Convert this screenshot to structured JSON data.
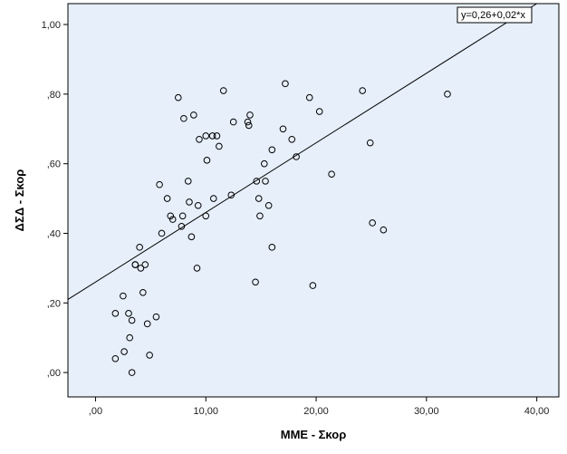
{
  "colors": {
    "plot_background": "#e6effa",
    "frame": "#000000",
    "marker_stroke": "#000000",
    "fit_line": "#000000"
  },
  "chart_data": {
    "type": "scatter",
    "xlabel": "MME - Σκορ",
    "ylabel": "ΔΣΔ - Σκορ",
    "xlim": [
      -2.5,
      42
    ],
    "ylim": [
      -0.07,
      1.06
    ],
    "x_ticks": [
      0,
      10,
      20,
      30,
      40
    ],
    "x_tick_labels": [
      ",00",
      "10,00",
      "20,00",
      "30,00",
      "40,00"
    ],
    "y_ticks": [
      0,
      0.2,
      0.4,
      0.6,
      0.8,
      1.0
    ],
    "y_tick_labels": [
      ",00",
      ",20",
      ",40",
      ",60",
      ",80",
      "1,00"
    ],
    "grid": false,
    "fit_line": {
      "intercept": 0.26,
      "slope": 0.02,
      "label": "y=0,26+0,02*x"
    },
    "points": [
      [
        1.8,
        0.04
      ],
      [
        1.8,
        0.17
      ],
      [
        2.5,
        0.22
      ],
      [
        2.6,
        0.06
      ],
      [
        3.0,
        0.17
      ],
      [
        3.1,
        0.1
      ],
      [
        3.3,
        0.15
      ],
      [
        3.3,
        0.0
      ],
      [
        3.6,
        0.31
      ],
      [
        3.6,
        0.31
      ],
      [
        4.0,
        0.36
      ],
      [
        4.1,
        0.3
      ],
      [
        4.3,
        0.23
      ],
      [
        4.5,
        0.31
      ],
      [
        4.7,
        0.14
      ],
      [
        4.9,
        0.05
      ],
      [
        5.5,
        0.16
      ],
      [
        5.8,
        0.54
      ],
      [
        6.0,
        0.4
      ],
      [
        6.5,
        0.5
      ],
      [
        6.8,
        0.45
      ],
      [
        7.0,
        0.44
      ],
      [
        7.5,
        0.79
      ],
      [
        7.8,
        0.42
      ],
      [
        7.9,
        0.45
      ],
      [
        8.0,
        0.73
      ],
      [
        8.4,
        0.55
      ],
      [
        8.5,
        0.49
      ],
      [
        8.7,
        0.39
      ],
      [
        8.9,
        0.74
      ],
      [
        9.2,
        0.3
      ],
      [
        9.3,
        0.48
      ],
      [
        9.4,
        0.67
      ],
      [
        10.0,
        0.68
      ],
      [
        10.0,
        0.45
      ],
      [
        10.1,
        0.61
      ],
      [
        10.6,
        0.68
      ],
      [
        10.7,
        0.5
      ],
      [
        11.0,
        0.68
      ],
      [
        11.2,
        0.65
      ],
      [
        11.6,
        0.81
      ],
      [
        12.3,
        0.51
      ],
      [
        12.5,
        0.72
      ],
      [
        13.8,
        0.72
      ],
      [
        13.9,
        0.71
      ],
      [
        14.0,
        0.74
      ],
      [
        14.5,
        0.26
      ],
      [
        14.6,
        0.55
      ],
      [
        14.8,
        0.5
      ],
      [
        14.9,
        0.45
      ],
      [
        15.3,
        0.6
      ],
      [
        15.4,
        0.55
      ],
      [
        15.7,
        0.48
      ],
      [
        16.0,
        0.64
      ],
      [
        16.0,
        0.36
      ],
      [
        17.0,
        0.7
      ],
      [
        17.2,
        0.83
      ],
      [
        17.8,
        0.67
      ],
      [
        18.2,
        0.62
      ],
      [
        19.4,
        0.79
      ],
      [
        19.7,
        0.25
      ],
      [
        20.3,
        0.75
      ],
      [
        21.4,
        0.57
      ],
      [
        24.2,
        0.81
      ],
      [
        24.9,
        0.66
      ],
      [
        25.1,
        0.43
      ],
      [
        26.1,
        0.41
      ],
      [
        31.9,
        0.8
      ]
    ]
  }
}
